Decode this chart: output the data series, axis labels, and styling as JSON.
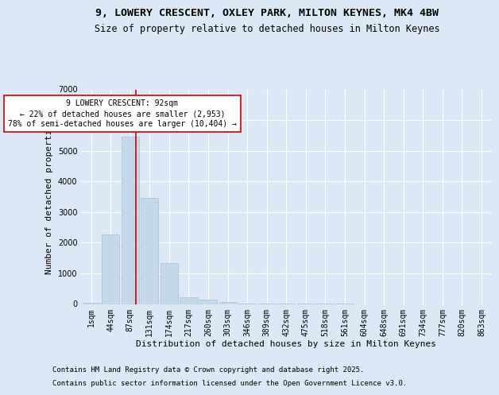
{
  "title_line1": "9, LOWERY CRESCENT, OXLEY PARK, MILTON KEYNES, MK4 4BW",
  "title_line2": "Size of property relative to detached houses in Milton Keynes",
  "xlabel": "Distribution of detached houses by size in Milton Keynes",
  "ylabel": "Number of detached properties",
  "categories": [
    "1sqm",
    "44sqm",
    "87sqm",
    "131sqm",
    "174sqm",
    "217sqm",
    "260sqm",
    "303sqm",
    "346sqm",
    "389sqm",
    "432sqm",
    "475sqm",
    "518sqm",
    "561sqm",
    "604sqm",
    "648sqm",
    "691sqm",
    "734sqm",
    "777sqm",
    "820sqm",
    "863sqm"
  ],
  "values": [
    50,
    2280,
    5450,
    3450,
    1330,
    220,
    150,
    75,
    18,
    6,
    3,
    2,
    1,
    1,
    0,
    0,
    0,
    0,
    0,
    0,
    0
  ],
  "bar_color": "#c5d8ea",
  "bar_edge_color": "#aabfcf",
  "vline_color": "#cc0000",
  "vline_x_index": 2,
  "annotation_text": "9 LOWERY CRESCENT: 92sqm\n← 22% of detached houses are smaller (2,953)\n78% of semi-detached houses are larger (10,404) →",
  "annotation_box_facecolor": "#ffffff",
  "annotation_box_edgecolor": "#cc0000",
  "ylim": [
    0,
    7000
  ],
  "yticks": [
    0,
    1000,
    2000,
    3000,
    4000,
    5000,
    6000,
    7000
  ],
  "bg_color": "#dce8f5",
  "plot_bg_color": "#dce8f5",
  "footer_line1": "Contains HM Land Registry data © Crown copyright and database right 2025.",
  "footer_line2": "Contains public sector information licensed under the Open Government Licence v3.0.",
  "title1_fontsize": 9.5,
  "title2_fontsize": 8.5,
  "axis_label_fontsize": 8,
  "tick_fontsize": 7,
  "footer_fontsize": 6.5,
  "annot_fontsize": 7
}
